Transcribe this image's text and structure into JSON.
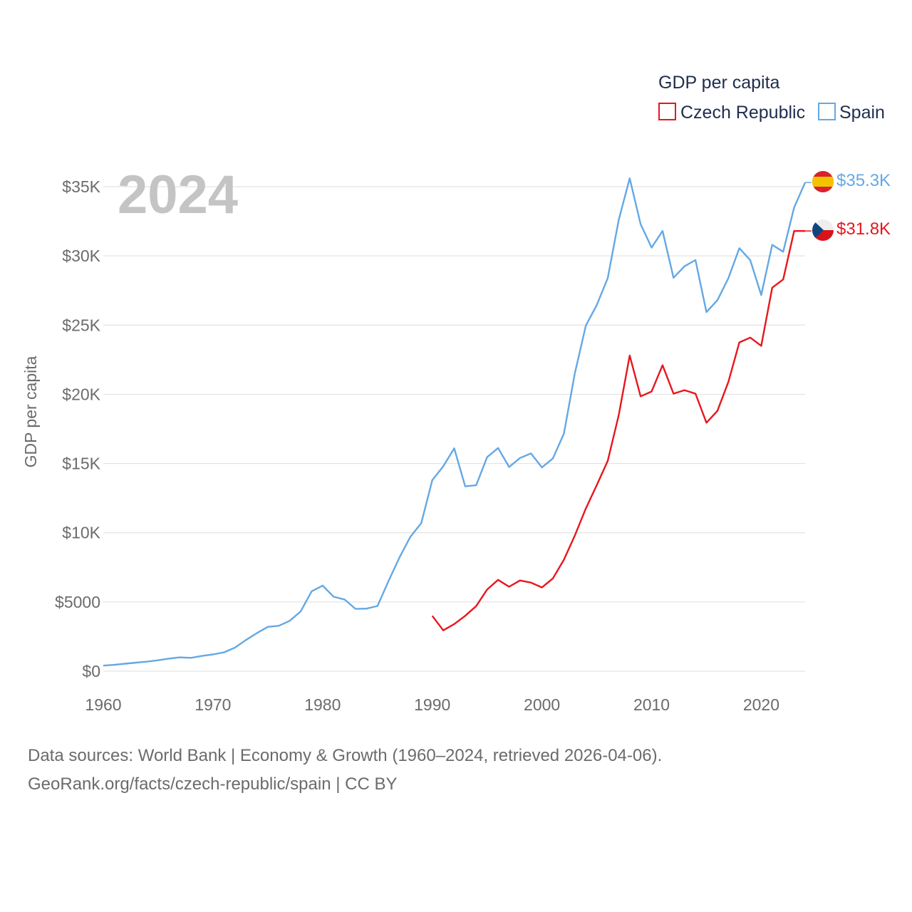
{
  "chart_data": {
    "type": "line",
    "legend_title": "GDP per capita",
    "ylabel": "GDP per capita",
    "xlabel": "",
    "year_display": "2024",
    "xlim": [
      1960,
      2024
    ],
    "ylim": [
      0,
      35000
    ],
    "x_ticks": [
      1960,
      1970,
      1980,
      1990,
      2000,
      2010,
      2020
    ],
    "x_tick_labels": [
      "1960",
      "1970",
      "1980",
      "1990",
      "2000",
      "2010",
      "2020"
    ],
    "y_ticks": [
      0,
      5000,
      10000,
      15000,
      20000,
      25000,
      30000,
      35000
    ],
    "y_tick_labels": [
      "$0",
      "$5000",
      "$10K",
      "$15K",
      "$20K",
      "$25K",
      "$30K",
      "$35K"
    ],
    "grid": true,
    "legend_position": "top-right",
    "series": [
      {
        "name": "Czech Republic",
        "color": "#e8161c",
        "flag": "czech-flag",
        "end_label": "$31.8K",
        "x": [
          1990,
          1991,
          1992,
          1993,
          1994,
          1995,
          1996,
          1997,
          1998,
          1999,
          2000,
          2001,
          2002,
          2003,
          2004,
          2005,
          2006,
          2007,
          2008,
          2009,
          2010,
          2011,
          2012,
          2013,
          2014,
          2015,
          2016,
          2017,
          2018,
          2019,
          2020,
          2021,
          2022,
          2023,
          2024
        ],
        "values": [
          4000,
          2950,
          3400,
          4000,
          4700,
          5900,
          6600,
          6100,
          6550,
          6400,
          6050,
          6700,
          8050,
          9800,
          11750,
          13450,
          15200,
          18500,
          22800,
          19850,
          20200,
          22100,
          20050,
          20300,
          20050,
          17950,
          18800,
          20900,
          23750,
          24100,
          23500,
          27700,
          28300,
          31800,
          31800
        ]
      },
      {
        "name": "Spain",
        "color": "#64a8e4",
        "flag": "spain-flag",
        "end_label": "$35.3K",
        "x": [
          1960,
          1961,
          1962,
          1963,
          1964,
          1965,
          1966,
          1967,
          1968,
          1969,
          1970,
          1971,
          1972,
          1973,
          1974,
          1975,
          1976,
          1977,
          1978,
          1979,
          1980,
          1981,
          1982,
          1983,
          1984,
          1985,
          1986,
          1987,
          1988,
          1989,
          1990,
          1991,
          1992,
          1993,
          1994,
          1995,
          1996,
          1997,
          1998,
          1999,
          2000,
          2001,
          2002,
          2003,
          2004,
          2005,
          2006,
          2007,
          2008,
          2009,
          2010,
          2011,
          2012,
          2013,
          2014,
          2015,
          2016,
          2017,
          2018,
          2019,
          2020,
          2021,
          2022,
          2023,
          2024
        ],
        "values": [
          400,
          460,
          540,
          620,
          690,
          790,
          910,
          1000,
          960,
          1100,
          1210,
          1360,
          1700,
          2250,
          2750,
          3200,
          3280,
          3640,
          4320,
          5770,
          6180,
          5380,
          5180,
          4500,
          4520,
          4710,
          6500,
          8200,
          9700,
          10700,
          13800,
          14800,
          16100,
          13350,
          13430,
          15460,
          16120,
          14750,
          15400,
          15730,
          14720,
          15370,
          17150,
          21520,
          24960,
          26450,
          28400,
          32600,
          35600,
          32300,
          30600,
          31800,
          28420,
          29250,
          29700,
          25940,
          26800,
          28390,
          30560,
          29690,
          27170,
          30800,
          30300,
          33500,
          35300
        ]
      }
    ],
    "source_line_1": "Data sources: World Bank | Economy & Growth (1960–2024, retrieved 2026-04-06).",
    "source_line_2": "GeoRank.org/facts/czech-republic/spain | CC BY"
  }
}
